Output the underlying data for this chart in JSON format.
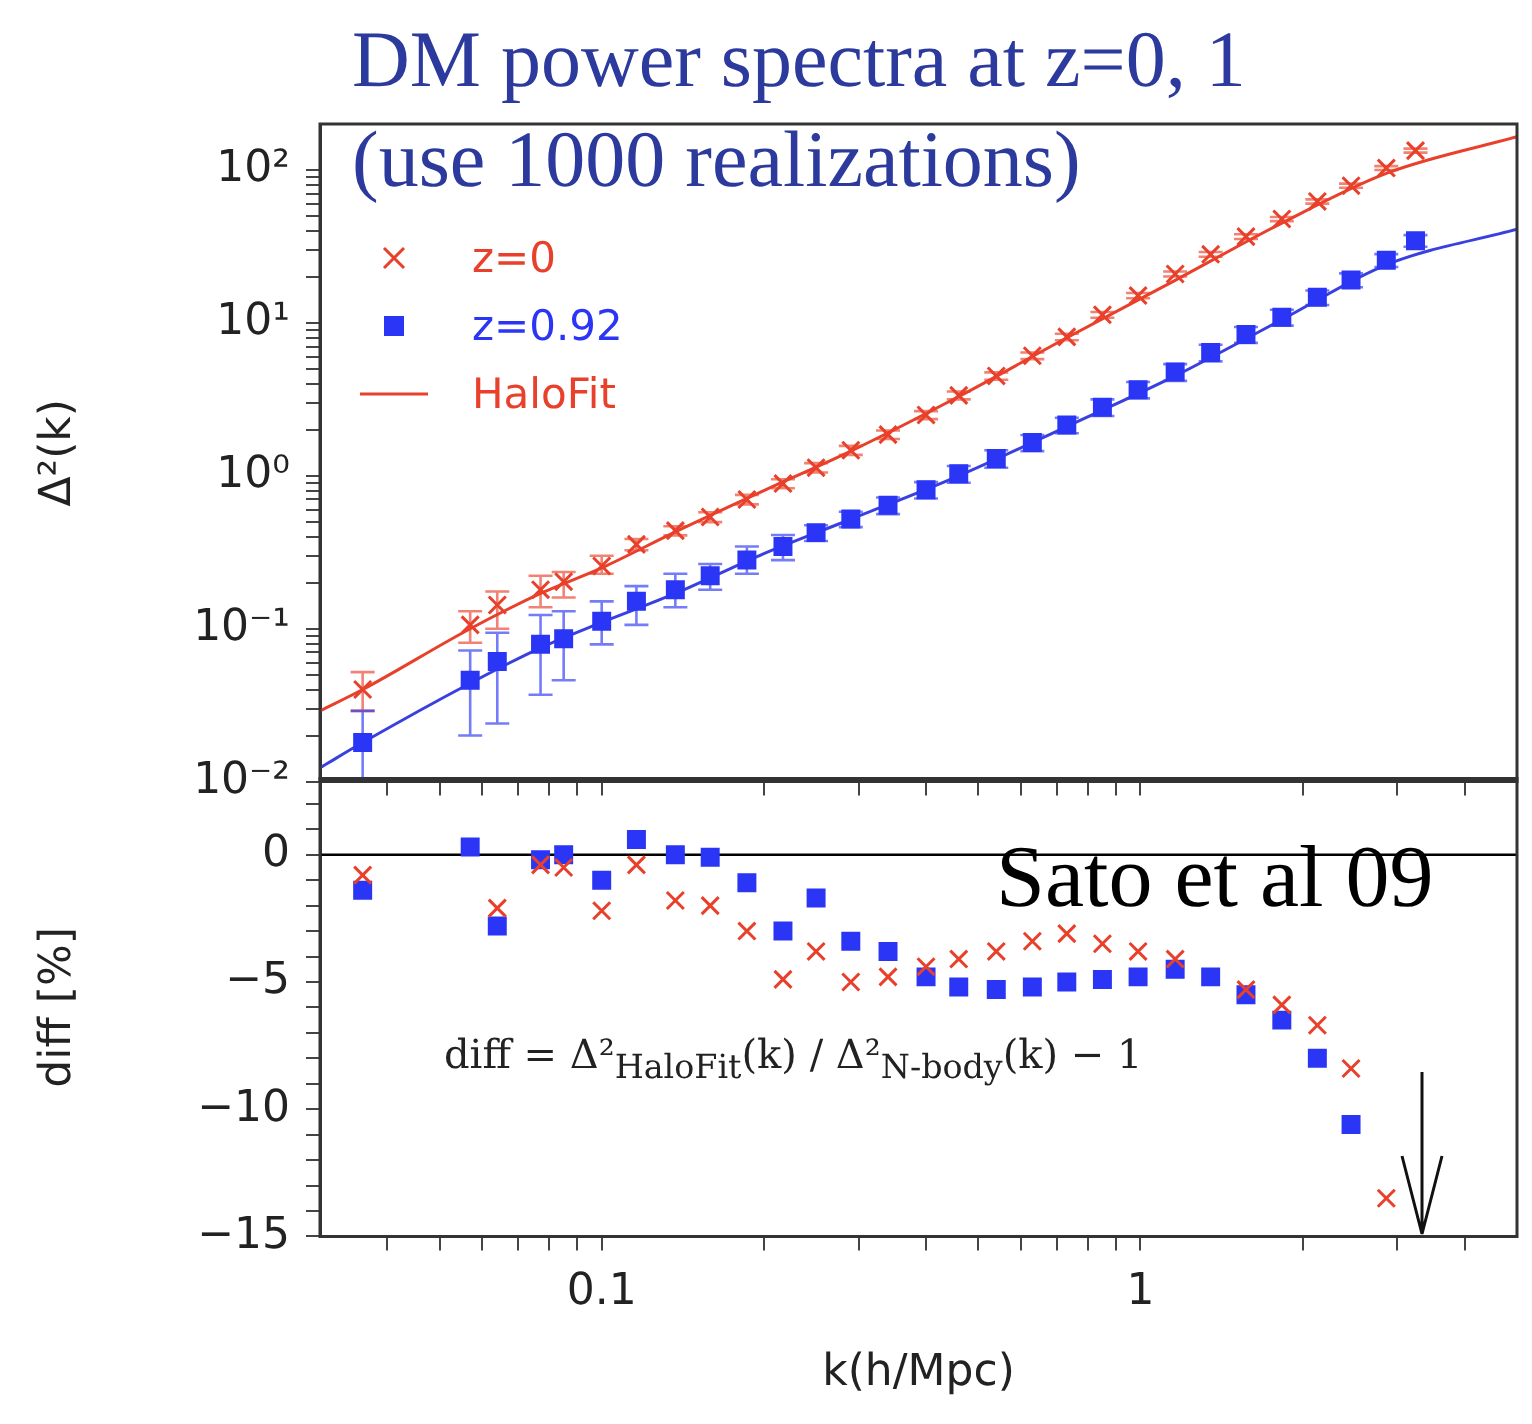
{
  "chart_data": [
    {
      "type": "scatter",
      "title": "DM power spectra at z=0, 1",
      "subtitle": "(use 1000 realizations)",
      "ylabel": "Δ²(k)",
      "log": "xy",
      "grid": false,
      "legend": "top left",
      "tick_labels": "y",
      "xlim": [
        0.03,
        5
      ],
      "ylim": [
        0.01,
        200
      ],
      "xticks": [
        {
          "value": 0.04,
          "label": null
        },
        {
          "value": 0.05,
          "label": null
        },
        {
          "value": 0.06,
          "label": null
        },
        {
          "value": 0.07,
          "label": null
        },
        {
          "value": 0.08,
          "label": null
        },
        {
          "value": 0.09,
          "label": null
        },
        {
          "value": 0.1,
          "label": null
        },
        {
          "value": 0.2,
          "label": null
        },
        {
          "value": 0.3,
          "label": null
        },
        {
          "value": 0.4,
          "label": null
        },
        {
          "value": 0.5,
          "label": null
        },
        {
          "value": 0.6,
          "label": null
        },
        {
          "value": 0.7,
          "label": null
        },
        {
          "value": 0.8,
          "label": null
        },
        {
          "value": 0.9,
          "label": null
        },
        {
          "value": 1,
          "label": null
        },
        {
          "value": 2,
          "label": null
        },
        {
          "value": 3,
          "label": null
        },
        {
          "value": 4,
          "label": null
        }
      ],
      "yticks": [
        {
          "value": 0.01,
          "label": "10⁻²"
        },
        {
          "value": 0.02,
          "label": null
        },
        {
          "value": 0.03,
          "label": null
        },
        {
          "value": 0.04,
          "label": null
        },
        {
          "value": 0.05,
          "label": null
        },
        {
          "value": 0.06,
          "label": null
        },
        {
          "value": 0.07,
          "label": null
        },
        {
          "value": 0.08,
          "label": null
        },
        {
          "value": 0.09,
          "label": null
        },
        {
          "value": 0.1,
          "label": "10⁻¹"
        },
        {
          "value": 0.2,
          "label": null
        },
        {
          "value": 0.3,
          "label": null
        },
        {
          "value": 0.4,
          "label": null
        },
        {
          "value": 0.5,
          "label": null
        },
        {
          "value": 0.6,
          "label": null
        },
        {
          "value": 0.7,
          "label": null
        },
        {
          "value": 0.8,
          "label": null
        },
        {
          "value": 0.9,
          "label": null
        },
        {
          "value": 1,
          "label": "10⁰"
        },
        {
          "value": 2,
          "label": null
        },
        {
          "value": 3,
          "label": null
        },
        {
          "value": 4,
          "label": null
        },
        {
          "value": 5,
          "label": null
        },
        {
          "value": 6,
          "label": null
        },
        {
          "value": 7,
          "label": null
        },
        {
          "value": 8,
          "label": null
        },
        {
          "value": 9,
          "label": null
        },
        {
          "value": 10,
          "label": "10¹"
        },
        {
          "value": 20,
          "label": null
        },
        {
          "value": 30,
          "label": null
        },
        {
          "value": 40,
          "label": null
        },
        {
          "value": 50,
          "label": null
        },
        {
          "value": 60,
          "label": null
        },
        {
          "value": 70,
          "label": null
        },
        {
          "value": 80,
          "label": null
        },
        {
          "value": 90,
          "label": null
        },
        {
          "value": 100,
          "label": "10²"
        }
      ],
      "x": [
        0.036,
        0.057,
        0.064,
        0.077,
        0.085,
        0.1,
        0.116,
        0.137,
        0.159,
        0.186,
        0.217,
        0.25,
        0.29,
        0.34,
        0.4,
        0.46,
        0.54,
        0.63,
        0.73,
        0.85,
        0.99,
        1.16,
        1.35,
        1.57,
        1.83,
        2.13,
        2.46,
        2.86,
        3.24
      ],
      "series": [
        {
          "name": "z=0",
          "color": "#e8402a",
          "marker": "cross",
          "values": [
            0.04,
            0.106,
            0.143,
            0.18,
            0.203,
            0.257,
            0.356,
            0.438,
            0.538,
            0.7,
            0.89,
            1.13,
            1.47,
            1.86,
            2.5,
            3.36,
            4.5,
            6.1,
            8.1,
            11.3,
            15.1,
            20.9,
            28.1,
            36.7,
            47.8,
            62.3,
            79,
            103,
            134
          ],
          "errors": [
            [
              0.029,
              0.052
            ],
            [
              0.081,
              0.13
            ],
            [
              0.1,
              0.175
            ],
            [
              0.138,
              0.222
            ],
            [
              0.16,
              0.235
            ],
            [
              0.229,
              0.3
            ],
            0.03,
            0.03,
            0.04,
            0.05,
            0.06,
            0.08,
            0.1,
            0.12,
            0.15,
            0.2,
            0.25,
            0.3,
            0.4,
            0.5,
            0.6,
            0.8,
            1,
            1.3,
            1.5,
            2,
            2.5,
            3,
            4
          ]
        },
        {
          "name": "z=0.92",
          "color": "#2a35f5",
          "marker": "square",
          "values": [
            0.018,
            0.046,
            0.061,
            0.079,
            0.086,
            0.112,
            0.151,
            0.18,
            0.222,
            0.281,
            0.345,
            0.425,
            0.522,
            0.642,
            0.81,
            1.03,
            1.3,
            1.65,
            2.15,
            2.81,
            3.66,
            4.78,
            6.4,
            8.4,
            10.9,
            14.7,
            19.1,
            25.7,
            34.5
          ],
          "errors": [
            [
              0.0105,
              0.029
            ],
            [
              0.02,
              0.072
            ],
            [
              0.024,
              0.094
            ],
            [
              0.037,
              0.123
            ],
            [
              0.046,
              0.13
            ],
            [
              0.079,
              0.151
            ],
            [
              0.106,
              0.19
            ],
            [
              0.138,
              0.229
            ],
            [
              0.18,
              0.265
            ],
            [
              0.229,
              0.345
            ],
            [
              0.281,
              0.41
            ],
            0.05,
            0.06,
            0.08,
            0.1,
            0.13,
            0.17,
            0.2,
            0.25,
            0.35,
            0.45,
            0.6,
            0.8,
            1,
            1.3,
            1.6,
            2,
            2.5,
            3
          ]
        },
        {
          "name": "HaloFit",
          "type": "line",
          "color": "#e8402a",
          "marker": "none",
          "x": [
            0.03,
            0.036,
            0.057,
            0.077,
            0.1,
            0.137,
            0.2,
            0.29,
            0.46,
            0.73,
            1.16,
            1.83,
            2.86,
            5
          ],
          "values": [
            0.029,
            0.04,
            0.1,
            0.17,
            0.25,
            0.43,
            0.8,
            1.45,
            3.3,
            8,
            19,
            45,
            95,
            165
          ]
        },
        {
          "type": "line",
          "color": "#3a40e0",
          "marker": "none",
          "x": [
            0.03,
            0.036,
            0.057,
            0.077,
            0.1,
            0.137,
            0.2,
            0.29,
            0.46,
            0.73,
            1.16,
            1.83,
            2.86,
            5
          ],
          "values": [
            0.0123,
            0.018,
            0.044,
            0.075,
            0.11,
            0.17,
            0.31,
            0.52,
            1,
            2.1,
            4.5,
            10.5,
            24,
            41
          ]
        }
      ]
    },
    {
      "type": "scatter",
      "xlabel": "k(h/Mpc)",
      "ylabel": "diff [%]",
      "log": "x",
      "grid": false,
      "annotations": [
        "Sato et al 09",
        "diff = Δ²$_{HaloFit}$(k) / Δ²$_{N-body}$(k) − 1"
      ],
      "ref_lines": [
        {
          "axis": "y",
          "value": 0,
          "color": "#000000"
        }
      ],
      "xlim": [
        0.03,
        5
      ],
      "ylim": [
        -15,
        3
      ],
      "xticks": [
        {
          "value": 0.04,
          "label": null
        },
        {
          "value": 0.05,
          "label": null
        },
        {
          "value": 0.06,
          "label": null
        },
        {
          "value": 0.07,
          "label": null
        },
        {
          "value": 0.08,
          "label": null
        },
        {
          "value": 0.09,
          "label": null
        },
        0.1,
        {
          "value": 0.2,
          "label": null
        },
        {
          "value": 0.3,
          "label": null
        },
        {
          "value": 0.4,
          "label": null
        },
        {
          "value": 0.5,
          "label": null
        },
        {
          "value": 0.6,
          "label": null
        },
        {
          "value": 0.7,
          "label": null
        },
        {
          "value": 0.8,
          "label": null
        },
        {
          "value": 0.9,
          "label": null
        },
        1,
        {
          "value": 2,
          "label": null
        },
        {
          "value": 3,
          "label": null
        },
        {
          "value": 4,
          "label": null
        }
      ],
      "yticks": [
        {
          "value": -15,
          "label": "−15"
        },
        {
          "value": -14,
          "label": null
        },
        {
          "value": -13,
          "label": null
        },
        {
          "value": -12,
          "label": null
        },
        {
          "value": -11,
          "label": null
        },
        {
          "value": -10,
          "label": "−10"
        },
        {
          "value": -9,
          "label": null
        },
        {
          "value": -8,
          "label": null
        },
        {
          "value": -7,
          "label": null
        },
        {
          "value": -6,
          "label": null
        },
        {
          "value": -5,
          "label": "−5"
        },
        {
          "value": -4,
          "label": null
        },
        {
          "value": -3,
          "label": null
        },
        {
          "value": -2,
          "label": null
        },
        {
          "value": -1,
          "label": null
        },
        0,
        {
          "value": 1,
          "label": null
        },
        {
          "value": 2,
          "label": null
        }
      ],
      "x": [
        0.036,
        0.057,
        0.064,
        0.077,
        0.085,
        0.1,
        0.116,
        0.137,
        0.159,
        0.186,
        0.217,
        0.25,
        0.29,
        0.34,
        0.4,
        0.46,
        0.54,
        0.63,
        0.73,
        0.85,
        0.99,
        1.16,
        1.35,
        1.57,
        1.83,
        2.13,
        2.46,
        2.86
      ],
      "series": [
        {
          "color": "#e8402a",
          "marker": "cross",
          "values": [
            -0.8,
            null,
            -2.1,
            -0.4,
            -0.5,
            -2.2,
            -0.4,
            -1.8,
            -2.0,
            -3.0,
            -4.9,
            -3.8,
            -5.0,
            -4.8,
            -4.4,
            -4.1,
            -3.8,
            -3.4,
            -3.1,
            -3.5,
            -3.8,
            -4.1,
            null,
            -5.3,
            -5.9,
            -6.7,
            -8.4,
            -13.5
          ]
        },
        {
          "color": "#2a35f5",
          "marker": "square",
          "values": [
            -1.4,
            0.3,
            -2.8,
            -0.2,
            0.0,
            -1.0,
            0.6,
            0.0,
            -0.1,
            -1.1,
            -3.0,
            -1.7,
            -3.4,
            -3.8,
            -4.8,
            -5.2,
            -5.3,
            -5.2,
            -5.0,
            -4.9,
            -4.8,
            -4.5,
            -4.8,
            -5.5,
            -6.5,
            -8.0,
            -10.6,
            null
          ]
        }
      ]
    }
  ]
}
